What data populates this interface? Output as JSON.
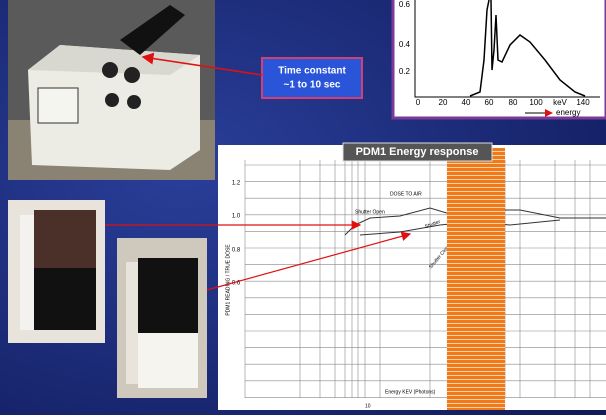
{
  "callout": {
    "text": [
      "Time constant",
      "~1 to 10 sec"
    ]
  },
  "spectrum": {
    "yticks": [
      "0.2",
      "0.4",
      "0.6"
    ],
    "xticks": [
      "0",
      "20",
      "40",
      "60",
      "80",
      "100",
      "keV",
      "140"
    ],
    "xlabel": "energy"
  },
  "response_chart": {
    "title": "PDM1 Energy response",
    "yticks": [
      "1.2",
      "1.0",
      "0.8",
      "0.6"
    ],
    "annotations": [
      "DOSE TO AIR",
      "Shutter Open",
      "Shutter",
      "Shutter Closed"
    ],
    "xlabel": "Energy KEV (Photons)",
    "ylabel": "PDM1 READING / TRUE DOSE",
    "xtick": "10"
  }
}
